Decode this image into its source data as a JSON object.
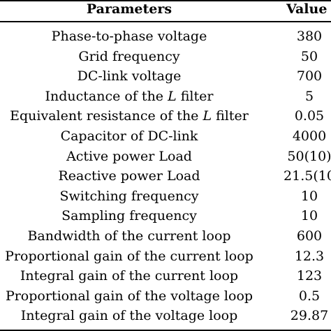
{
  "header": {
    "parameters_label": "Parameters",
    "value_label": "Value"
  },
  "rows": [
    {
      "parameter": "Phase-to-phase voltage",
      "value": "380"
    },
    {
      "parameter": "Grid frequency",
      "value": "50"
    },
    {
      "parameter": "DC-link voltage",
      "value": "700"
    },
    {
      "parameter_pre": "Inductance of the ",
      "parameter_var": "L",
      "parameter_post": " filter",
      "value": "5"
    },
    {
      "parameter_pre": "Equivalent resistance of the ",
      "parameter_var": "L",
      "parameter_post": " filter",
      "value": "0.05"
    },
    {
      "parameter": "Capacitor of DC-link",
      "value": "4000"
    },
    {
      "parameter": "Active power Load",
      "value": "50(10)"
    },
    {
      "parameter": "Reactive power Load",
      "value": "21.5(10"
    },
    {
      "parameter": "Switching frequency",
      "value": "10"
    },
    {
      "parameter": "Sampling frequency",
      "value": "10"
    },
    {
      "parameter": "Bandwidth of the current loop",
      "value": "600"
    },
    {
      "parameter": "Proportional gain of the current loop",
      "value": "12.3"
    },
    {
      "parameter": "Integral gain of the current loop",
      "value": "123"
    },
    {
      "parameter": "Proportional gain of the voltage loop",
      "value": "0.5"
    },
    {
      "parameter": "Integral gain of the voltage loop",
      "value": "29.87"
    }
  ]
}
